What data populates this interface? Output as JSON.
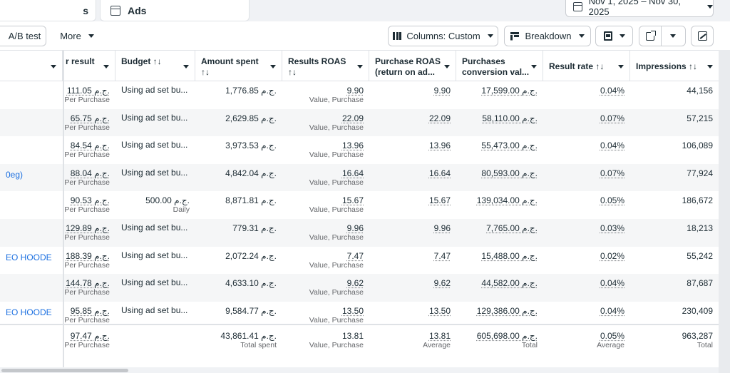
{
  "tabs": {
    "left_label": "s",
    "ads_label": "Ads"
  },
  "date_range": "Nov 1, 2025 – Nov 30, 2025",
  "toolbar": {
    "ab_test": "A/B test",
    "more": "More",
    "columns": "Columns: Custom",
    "breakdown": "Breakdown"
  },
  "headers": [
    {
      "l1": "",
      "l2": ""
    },
    {
      "l1": "r result",
      "l2": ""
    },
    {
      "l1": "Budget ↑↓",
      "l2": ""
    },
    {
      "l1": "Amount spent",
      "l2": "↑↓"
    },
    {
      "l1": "Results ROAS",
      "l2": "↑↓"
    },
    {
      "l1": "Purchase ROAS",
      "l2": "(return on ad..."
    },
    {
      "l1": "Purchases",
      "l2": "conversion val..."
    },
    {
      "l1": "Result rate ↑↓",
      "l2": ""
    },
    {
      "l1": "Impressions ↑↓",
      "l2": ""
    }
  ],
  "rows": [
    {
      "name": "",
      "cpr": "111.05 ج.م.",
      "cpr_sub": "Per Purchase",
      "budget": "Using ad set bu...",
      "budget_sub": "",
      "spent": "1,776.85 ج.م.",
      "roas": "9.90",
      "roas_sub": "Value, Purchase",
      "proas": "9.90",
      "pcv": "17,599.00 ج.م.",
      "rate": "0.04%",
      "impr": "44,156"
    },
    {
      "name": "",
      "cpr": "65.75 ج.م.",
      "cpr_sub": "Per Purchase",
      "budget": "Using ad set bu...",
      "budget_sub": "",
      "spent": "2,629.85 ج.م.",
      "roas": "22.09",
      "roas_sub": "Value, Purchase",
      "proas": "22.09",
      "pcv": "58,110.00 ج.م.",
      "rate": "0.07%",
      "impr": "57,215"
    },
    {
      "name": "",
      "cpr": "84.54 ج.م.",
      "cpr_sub": "Per Purchase",
      "budget": "Using ad set bu...",
      "budget_sub": "",
      "spent": "3,973.53 ج.م.",
      "roas": "13.96",
      "roas_sub": "Value, Purchase",
      "proas": "13.96",
      "pcv": "55,473.00 ج.م.",
      "rate": "0.04%",
      "impr": "106,089"
    },
    {
      "name": "0eg)",
      "cpr": "88.04 ج.م.",
      "cpr_sub": "Per Purchase",
      "budget": "Using ad set bu...",
      "budget_sub": "",
      "spent": "4,842.04 ج.م.",
      "roas": "16.64",
      "roas_sub": "Value, Purchase",
      "proas": "16.64",
      "pcv": "80,593.00 ج.م.",
      "rate": "0.07%",
      "impr": "77,924"
    },
    {
      "name": "",
      "cpr": "90.53 ج.م.",
      "cpr_sub": "Per Purchase",
      "budget": "500.00 ج.م.",
      "budget_sub": "Daily",
      "spent": "8,871.81 ج.م.",
      "roas": "15.67",
      "roas_sub": "Value, Purchase",
      "proas": "15.67",
      "pcv": "139,034.00 ج.م.",
      "rate": "0.05%",
      "impr": "186,672"
    },
    {
      "name": "",
      "cpr": "129.89 ج.م.",
      "cpr_sub": "Per Purchase",
      "budget": "Using ad set bu...",
      "budget_sub": "",
      "spent": "779.31 ج.م.",
      "roas": "9.96",
      "roas_sub": "Value, Purchase",
      "proas": "9.96",
      "pcv": "7,765.00 ج.م.",
      "rate": "0.03%",
      "impr": "18,213"
    },
    {
      "name": "EO HOODE",
      "cpr": "188.39 ج.م.",
      "cpr_sub": "Per Purchase",
      "budget": "Using ad set bu...",
      "budget_sub": "",
      "spent": "2,072.24 ج.م.",
      "roas": "7.47",
      "roas_sub": "Value, Purchase",
      "proas": "7.47",
      "pcv": "15,488.00 ج.م.",
      "rate": "0.02%",
      "impr": "55,242"
    },
    {
      "name": "",
      "cpr": "144.78 ج.م.",
      "cpr_sub": "Per Purchase",
      "budget": "Using ad set bu...",
      "budget_sub": "",
      "spent": "4,633.10 ج.م.",
      "roas": "9.62",
      "roas_sub": "Value, Purchase",
      "proas": "9.62",
      "pcv": "44,582.00 ج.م.",
      "rate": "0.04%",
      "impr": "87,687"
    },
    {
      "name": "EO HOODE",
      "cpr": "95.85 ج.م.",
      "cpr_sub": "Per Purchase",
      "budget": "Using ad set bu...",
      "budget_sub": "",
      "spent": "9,584.77 ج.م.",
      "roas": "13.50",
      "roas_sub": "Value, Purchase",
      "proas": "13.50",
      "pcv": "129,386.00 ج.م.",
      "rate": "0.04%",
      "impr": "230,409"
    }
  ],
  "totals": {
    "cpr": "97.47 ج.م.",
    "cpr_sub": "Per Purchase",
    "spent": "43,861.41 ج.م.",
    "spent_sub": "Total spent",
    "roas": "13.81",
    "roas_sub": "Value, Purchase",
    "proas": "13.81",
    "proas_sub": "Average",
    "pcv": "605,698.00 ج.م.",
    "pcv_sub": "Total",
    "rate": "0.05%",
    "rate_sub": "Average",
    "impr": "963,287",
    "impr_sub": "Total"
  },
  "icons": {
    "calendar": "calendar-icon",
    "columns": "columns-icon",
    "breakdown": "breakdown-icon",
    "reports": "reports-icon",
    "export": "export-icon",
    "chart": "chart-icon"
  }
}
